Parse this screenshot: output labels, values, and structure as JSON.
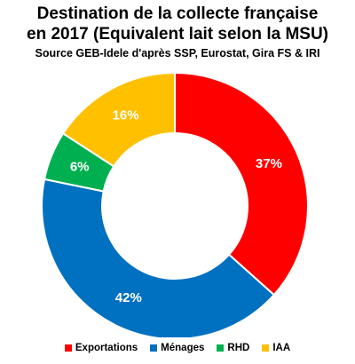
{
  "chart_data": {
    "type": "donut",
    "title": [
      "Destination de la collecte française",
      "en 2017 (Equivalent lait selon la MSU)"
    ],
    "subtitle": "Source GEB-Idele d'après SSP, Eurostat, Gira FS & IRI",
    "categories": [
      "Exportations",
      "Ménages",
      "RHD",
      "IAA"
    ],
    "values": [
      37,
      42,
      6,
      16
    ],
    "data_labels": [
      "37%",
      "42%",
      "6%",
      "16%"
    ],
    "colors": [
      "#ff0000",
      "#0070c0",
      "#00b050",
      "#ffc000"
    ],
    "legend_position": "bottom"
  }
}
